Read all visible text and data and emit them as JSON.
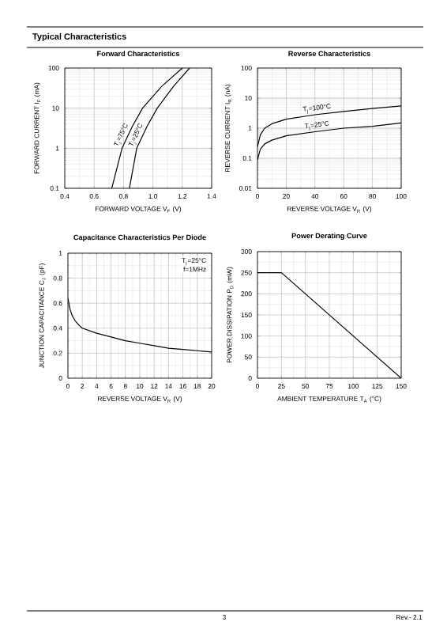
{
  "chart_data": [
    {
      "type": "line",
      "title": "Forward   Characteristics",
      "xlabel": "FORWARD VOLTAGE  V$_{F}$  (V)",
      "ylabel": "FORWARD CURRENT  I$_{F}$  (mA)",
      "log": "y",
      "grid": true,
      "marker": "none",
      "line_style": "solid",
      "xlim": [
        0.4,
        1.4
      ],
      "xticks": [
        0.4,
        0.6,
        0.8,
        {
          "value": 1,
          "label": "1.0"
        },
        1.2,
        1.4
      ],
      "ylim": [
        0.1,
        100
      ],
      "yticks": [
        0.1,
        1,
        10,
        100
      ],
      "series": [
        {
          "name": "T$_{j}$=75°C",
          "color": "#000000",
          "x": [
            0.72,
            0.79,
            0.86,
            0.93,
            1.06,
            1.2
          ],
          "values": [
            0.1,
            1,
            3.5,
            10,
            35,
            100
          ]
        },
        {
          "name": "T$_{j}$=25°C",
          "color": "#000000",
          "x": [
            0.84,
            0.89,
            0.96,
            1.03,
            1.14,
            1.25
          ],
          "values": [
            0.1,
            1,
            3.5,
            10,
            35,
            100
          ]
        }
      ],
      "annotations": [
        "Typical Characteristics"
      ]
    },
    {
      "type": "line",
      "title": "Reverse   Characteristics",
      "xlabel": "REVERSE VOLTAGE  V$_{R}$  (V)",
      "ylabel": "REVERSE CURRENT  I$_{R}$  (nA)",
      "log": "y",
      "grid": true,
      "marker": "none",
      "line_style": "solid",
      "xlim": [
        0,
        100
      ],
      "xticks": [
        0,
        20,
        40,
        60,
        80,
        100
      ],
      "ylim": [
        0.01,
        100
      ],
      "yticks": [
        0.01,
        0.1,
        1,
        10,
        100
      ],
      "series": [
        {
          "name": "T$_{j}$=100°C",
          "color": "#000000",
          "x": [
            0,
            2,
            5,
            10,
            20,
            40,
            60,
            80,
            100
          ],
          "values": [
            0.24,
            0.6,
            1.0,
            1.4,
            2.0,
            2.8,
            3.6,
            4.5,
            5.5
          ]
        },
        {
          "name": "T$_{j}$=25°C",
          "color": "#000000",
          "x": [
            0,
            2,
            5,
            10,
            20,
            40,
            60,
            80,
            100
          ],
          "values": [
            0.09,
            0.2,
            0.3,
            0.4,
            0.56,
            0.76,
            1.0,
            1.15,
            1.5
          ]
        }
      ]
    },
    {
      "type": "line",
      "title": "Capacitance Characteristics Per Diode",
      "xlabel": "REVERSE VOLTAGE  V$_{R}$  (V)",
      "ylabel": "JUNCTION CAPACITANCE C$_{J}$ (pF)",
      "grid": true,
      "marker": "none",
      "line_style": "solid",
      "xlim": [
        0,
        20
      ],
      "xticks": [
        0,
        2,
        4,
        6,
        8,
        10,
        12,
        14,
        16,
        18,
        20
      ],
      "ylim": [
        0,
        1
      ],
      "yticks": [
        0,
        0.2,
        0.4,
        0.6,
        0.8,
        1
      ],
      "series": [
        {
          "color": "#000000",
          "x": [
            0,
            0.3,
            0.6,
            1,
            1.6,
            2,
            4,
            6,
            8,
            10,
            12,
            14,
            16,
            18,
            20
          ],
          "values": [
            0.64,
            0.55,
            0.5,
            0.46,
            0.42,
            0.4,
            0.36,
            0.33,
            0.3,
            0.28,
            0.26,
            0.24,
            0.23,
            0.22,
            0.21
          ]
        }
      ],
      "annotations": [
        "T$_{j}$=25°C",
        "f=1MHz"
      ]
    },
    {
      "type": "line",
      "title": "Power Derating Curve",
      "xlabel": "AMBIENT TEMPERATURE  T$_{A}$  (°C)",
      "ylabel": "POWER DISSIPATION  P$_{D}$  (mW)",
      "grid": true,
      "marker": "none",
      "line_style": "solid",
      "xlim": [
        0,
        150
      ],
      "xticks": [
        0,
        25,
        50,
        75,
        100,
        125,
        150
      ],
      "ylim": [
        0,
        300
      ],
      "yticks": [
        0,
        50,
        100,
        150,
        200,
        250,
        300
      ],
      "series": [
        {
          "color": "#000000",
          "x": [
            0,
            25,
            150
          ],
          "values": [
            250,
            250,
            0
          ]
        }
      ],
      "annotations": [
        "3",
        "Rev.- 2.1"
      ]
    }
  ]
}
